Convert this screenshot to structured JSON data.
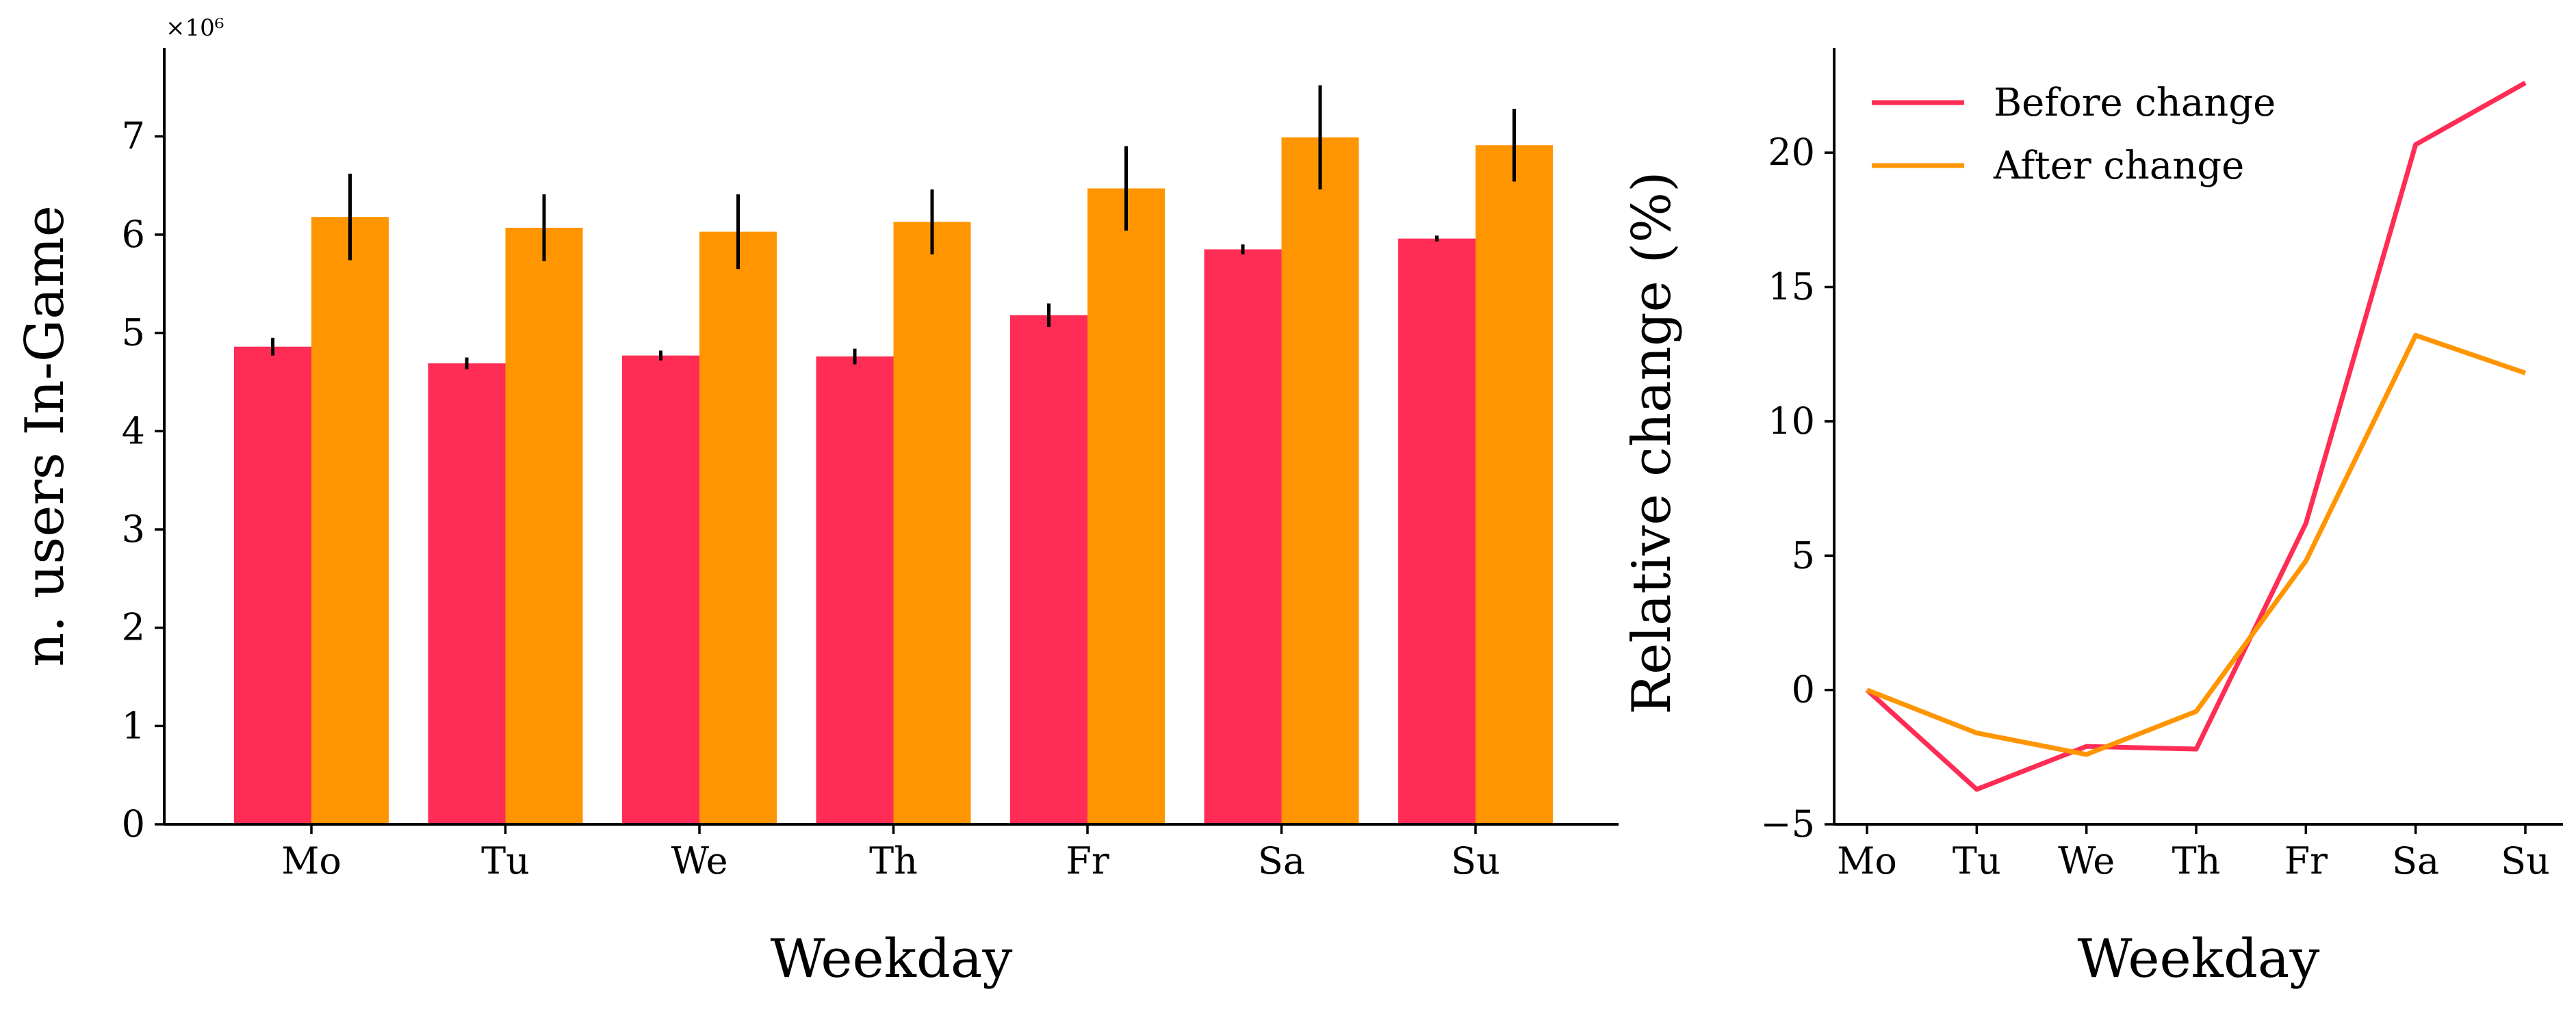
{
  "chart_data": [
    {
      "type": "bar",
      "categories": [
        "Mo",
        "Tu",
        "We",
        "Th",
        "Fr",
        "Sa",
        "Su"
      ],
      "series": [
        {
          "values": [
            4.86,
            4.69,
            4.77,
            4.76,
            5.18,
            5.85,
            5.96
          ],
          "errors": [
            0.09,
            0.06,
            0.05,
            0.08,
            0.12,
            0.05,
            0.03
          ],
          "color": "#FF2D55"
        },
        {
          "values": [
            6.18,
            6.07,
            6.03,
            6.13,
            6.47,
            6.99,
            6.91
          ],
          "errors": [
            0.44,
            0.34,
            0.38,
            0.33,
            0.43,
            0.53,
            0.37
          ],
          "color": "#FF9500"
        }
      ],
      "ylim": [
        0,
        7.9
      ],
      "yticks": [
        0,
        1,
        2,
        3,
        4,
        5,
        6,
        7
      ],
      "yscale_offset": "×10⁶",
      "xlabel": "Weekday",
      "ylabel": "n. users In-Game",
      "grid": false
    },
    {
      "type": "line",
      "x": [
        "Mo",
        "Tu",
        "We",
        "Th",
        "Fr",
        "Sa",
        "Su"
      ],
      "series": [
        {
          "name": "Before change",
          "values": [
            0.0,
            -3.7,
            -2.1,
            -2.2,
            6.2,
            20.3,
            22.6
          ],
          "color": "#FF2D55"
        },
        {
          "name": "After change",
          "values": [
            0.0,
            -1.6,
            -2.4,
            -0.8,
            4.8,
            13.2,
            11.8
          ],
          "color": "#FF9500"
        }
      ],
      "ylim": [
        -5.0,
        23.9
      ],
      "yticks": [
        -5,
        0,
        5,
        10,
        15,
        20
      ],
      "xlabel": "Weekday",
      "ylabel": "Relative change (%)",
      "legend_position": "top-left",
      "grid": false
    }
  ]
}
